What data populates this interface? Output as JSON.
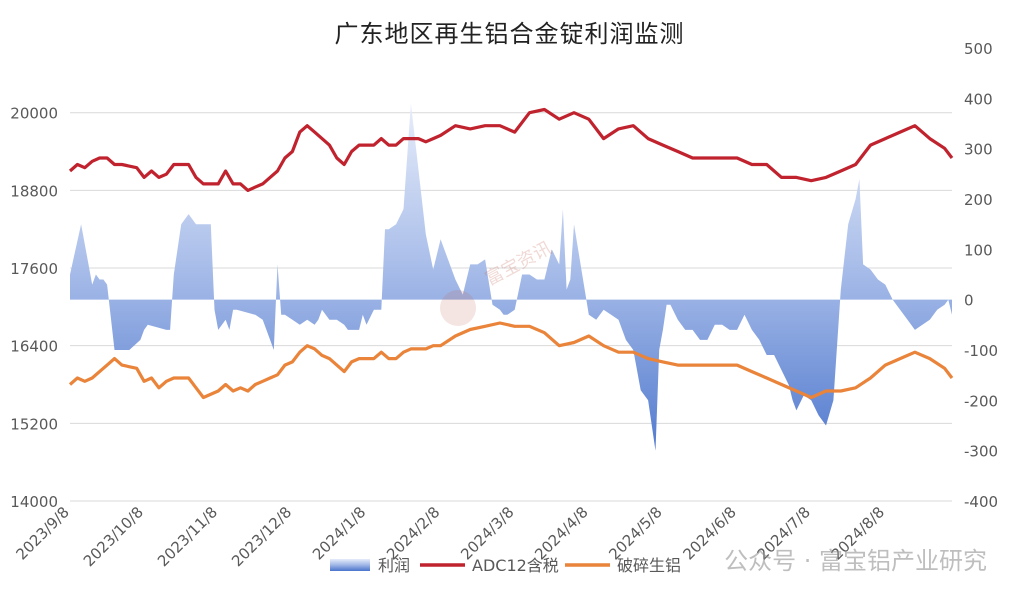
{
  "title": "广东地区再生铝合金锭利润监测",
  "watermark": "公众号 · 富宝铝产业研究",
  "brand_watermark": "富宝资讯",
  "colors": {
    "adc12": "#c0232e",
    "scrap": "#e9843a",
    "profit_top": "#a7bce9",
    "profit_bottom": "#4a74cc",
    "grid": "#d9d9d9",
    "axis_text": "#595959"
  },
  "chart_data": {
    "type": "line",
    "title": "广东地区再生铝合金锭利润监测",
    "x_labels": [
      "2023/9/8",
      "2023/10/8",
      "2023/11/8",
      "2023/12/8",
      "2024/1/8",
      "2024/2/8",
      "2024/3/8",
      "2024/4/8",
      "2024/5/8",
      "2024/6/8",
      "2024/7/8",
      "2024/8/8"
    ],
    "y_left": {
      "min": 14000,
      "max": 21000,
      "ticks": [
        14000,
        15200,
        16400,
        17600,
        18800,
        20000
      ]
    },
    "y_right": {
      "min": -400,
      "max": 500,
      "ticks": [
        -400,
        -300,
        -200,
        -100,
        0,
        100,
        200,
        300,
        400,
        500
      ]
    },
    "grid": true,
    "legend_position": "bottom",
    "legend": [
      "利润",
      "ADC12含税",
      "破碎生铝"
    ],
    "series": [
      {
        "name": "利润",
        "type": "area",
        "axis": "right",
        "x": [
          0,
          0.15,
          0.3,
          0.35,
          0.4,
          0.45,
          0.5,
          0.6,
          0.8,
          0.95,
          1.0,
          1.05,
          1.3,
          1.35,
          1.4,
          1.5,
          1.6,
          1.7,
          1.9,
          1.95,
          2.0,
          2.1,
          2.15,
          2.2,
          2.25,
          2.5,
          2.6,
          2.7,
          2.75,
          2.8,
          2.85,
          2.9,
          3.0,
          3.1,
          3.2,
          3.3,
          3.35,
          3.4,
          3.5,
          3.6,
          3.7,
          3.75,
          3.8,
          3.85,
          3.9,
          3.95,
          4.0,
          4.1,
          4.15,
          4.2,
          4.25,
          4.3,
          4.4,
          4.5,
          4.6,
          4.8,
          4.9,
          5.0,
          5.2,
          5.3,
          5.4,
          5.5,
          5.6,
          5.7,
          5.8,
          5.85,
          5.9,
          6.0,
          6.1,
          6.2,
          6.3,
          6.4,
          6.5,
          6.6,
          6.65,
          6.7,
          6.75,
          6.8,
          6.9,
          7.0,
          7.1,
          7.2,
          7.3,
          7.4,
          7.5,
          7.6,
          7.7,
          7.8,
          7.85,
          7.9,
          7.95,
          8.0,
          8.05,
          8.1,
          8.2,
          8.3,
          8.4,
          8.5,
          8.6,
          8.7,
          8.8,
          8.9,
          9.0,
          9.1,
          9.2,
          9.3,
          9.4,
          9.5,
          9.6,
          9.7,
          9.75,
          9.8,
          9.9,
          10.0,
          10.1,
          10.2,
          10.3,
          10.4,
          10.5,
          10.6,
          10.65,
          10.7,
          10.8,
          10.9,
          11.0,
          11.1,
          11.2,
          11.3,
          11.4,
          11.5,
          11.6,
          11.7,
          11.8,
          11.85,
          11.9
        ],
        "y": [
          50,
          150,
          30,
          50,
          40,
          40,
          30,
          -100,
          -100,
          -80,
          -60,
          -50,
          -60,
          -60,
          50,
          150,
          170,
          150,
          150,
          -20,
          -60,
          -40,
          -60,
          -20,
          -20,
          -30,
          -40,
          -80,
          -100,
          70,
          -30,
          -30,
          -40,
          -50,
          -40,
          -50,
          -40,
          -20,
          -40,
          -40,
          -50,
          -60,
          -60,
          -60,
          -60,
          -30,
          -50,
          -20,
          -20,
          -20,
          140,
          140,
          150,
          180,
          390,
          130,
          60,
          120,
          40,
          10,
          70,
          70,
          80,
          -10,
          -20,
          -30,
          -30,
          -20,
          50,
          50,
          40,
          40,
          100,
          70,
          180,
          20,
          40,
          150,
          60,
          -30,
          -40,
          -20,
          -30,
          -40,
          -80,
          -100,
          -180,
          -200,
          -250,
          -300,
          -100,
          -60,
          -10,
          -10,
          -40,
          -60,
          -60,
          -80,
          -80,
          -50,
          -50,
          -60,
          -60,
          -30,
          -60,
          -80,
          -110,
          -110,
          -140,
          -170,
          -200,
          -220,
          -190,
          -200,
          -230,
          -250,
          -200,
          20,
          150,
          200,
          240,
          70,
          60,
          40,
          30,
          0,
          -20,
          -40,
          -60,
          -50,
          -40,
          -20,
          -10,
          0,
          -30
        ],
        "values_note": ""
      },
      {
        "name": "ADC12含税",
        "type": "line",
        "axis": "left",
        "x": [
          0,
          0.1,
          0.2,
          0.3,
          0.4,
          0.5,
          0.6,
          0.7,
          0.9,
          1.0,
          1.1,
          1.2,
          1.3,
          1.4,
          1.5,
          1.6,
          1.7,
          1.8,
          2.0,
          2.1,
          2.2,
          2.3,
          2.4,
          2.5,
          2.6,
          2.7,
          2.8,
          2.9,
          3.0,
          3.1,
          3.2,
          3.3,
          3.4,
          3.5,
          3.6,
          3.7,
          3.8,
          3.9,
          4.0,
          4.1,
          4.2,
          4.3,
          4.4,
          4.5,
          4.6,
          4.7,
          4.8,
          4.9,
          5.0,
          5.2,
          5.4,
          5.6,
          5.8,
          6.0,
          6.2,
          6.4,
          6.6,
          6.8,
          7.0,
          7.2,
          7.4,
          7.6,
          7.8,
          8.0,
          8.2,
          8.4,
          8.6,
          8.8,
          9.0,
          9.2,
          9.4,
          9.6,
          9.8,
          10.0,
          10.2,
          10.4,
          10.6,
          10.8,
          11.0,
          11.2,
          11.4,
          11.6,
          11.8,
          11.9
        ],
        "y": [
          19100,
          19200,
          19150,
          19250,
          19300,
          19300,
          19200,
          19200,
          19150,
          19000,
          19100,
          19000,
          19050,
          19200,
          19200,
          19200,
          19000,
          18900,
          18900,
          19100,
          18900,
          18900,
          18800,
          18850,
          18900,
          19000,
          19100,
          19300,
          19400,
          19700,
          19800,
          19700,
          19600,
          19500,
          19300,
          19200,
          19400,
          19500,
          19500,
          19500,
          19600,
          19500,
          19500,
          19600,
          19600,
          19600,
          19550,
          19600,
          19650,
          19800,
          19750,
          19800,
          19800,
          19700,
          20000,
          20050,
          19900,
          20000,
          19900,
          19600,
          19750,
          19800,
          19600,
          19500,
          19400,
          19300,
          19300,
          19300,
          19300,
          19200,
          19200,
          19000,
          19000,
          18950,
          19000,
          19100,
          19200,
          19500,
          19600,
          19700,
          19800,
          19600,
          19450,
          19300
        ]
      },
      {
        "name": "破碎生铝",
        "type": "line",
        "axis": "left",
        "x": [
          0,
          0.1,
          0.2,
          0.3,
          0.4,
          0.5,
          0.6,
          0.7,
          0.9,
          1.0,
          1.1,
          1.2,
          1.3,
          1.4,
          1.5,
          1.6,
          1.7,
          1.8,
          2.0,
          2.1,
          2.2,
          2.3,
          2.4,
          2.5,
          2.6,
          2.7,
          2.8,
          2.9,
          3.0,
          3.1,
          3.2,
          3.3,
          3.4,
          3.5,
          3.6,
          3.7,
          3.8,
          3.9,
          4.0,
          4.1,
          4.2,
          4.3,
          4.4,
          4.5,
          4.6,
          4.7,
          4.8,
          4.9,
          5.0,
          5.2,
          5.4,
          5.6,
          5.8,
          6.0,
          6.2,
          6.4,
          6.6,
          6.8,
          7.0,
          7.2,
          7.4,
          7.6,
          7.8,
          8.0,
          8.2,
          8.4,
          8.6,
          8.8,
          9.0,
          9.2,
          9.4,
          9.6,
          9.8,
          10.0,
          10.2,
          10.4,
          10.6,
          10.8,
          11.0,
          11.2,
          11.4,
          11.6,
          11.8,
          11.9
        ],
        "y": [
          15800,
          15900,
          15850,
          15900,
          16000,
          16100,
          16200,
          16100,
          16050,
          15850,
          15900,
          15750,
          15850,
          15900,
          15900,
          15900,
          15750,
          15600,
          15700,
          15800,
          15700,
          15750,
          15700,
          15800,
          15850,
          15900,
          15950,
          16100,
          16150,
          16300,
          16400,
          16350,
          16250,
          16200,
          16100,
          16000,
          16150,
          16200,
          16200,
          16200,
          16300,
          16200,
          16200,
          16300,
          16350,
          16350,
          16350,
          16400,
          16400,
          16550,
          16650,
          16700,
          16750,
          16700,
          16700,
          16600,
          16400,
          16450,
          16550,
          16400,
          16300,
          16300,
          16200,
          16150,
          16100,
          16100,
          16100,
          16100,
          16100,
          16000,
          15900,
          15800,
          15700,
          15600,
          15700,
          15700,
          15750,
          15900,
          16100,
          16200,
          16300,
          16200,
          16050,
          15900
        ]
      }
    ]
  },
  "legend_items": [
    {
      "label": "利润"
    },
    {
      "label": "ADC12含税"
    },
    {
      "label": "破碎生铝"
    }
  ]
}
